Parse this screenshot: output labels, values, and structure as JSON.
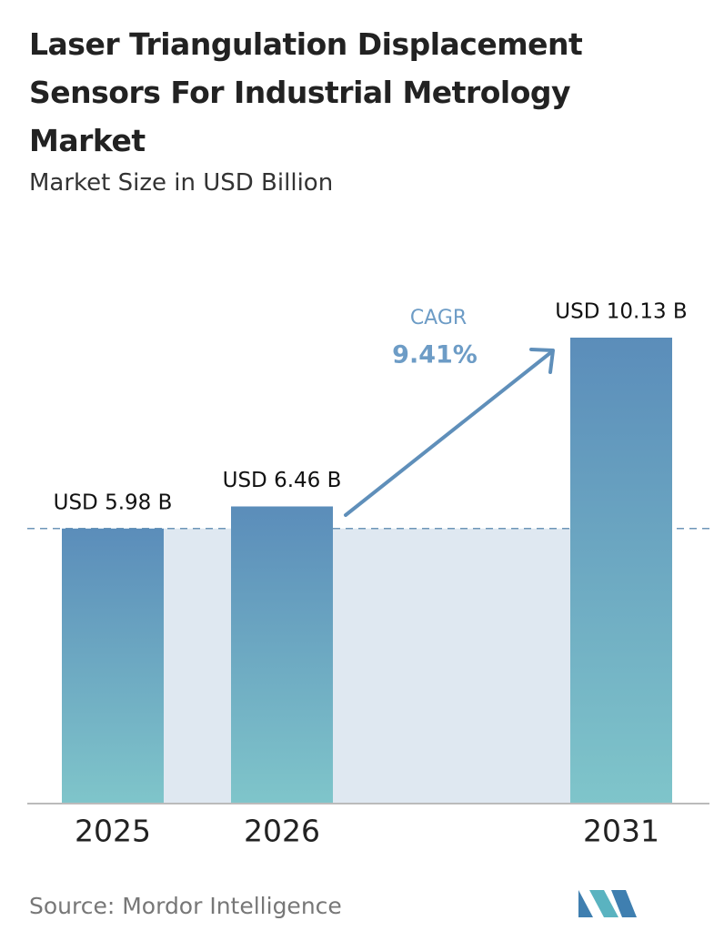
{
  "chart_data": {
    "type": "bar",
    "title": "Laser Triangulation Displacement Sensors For Industrial Metrology Market",
    "subtitle": "Market Size in USD Billion",
    "categories": [
      "2025",
      "2026",
      "2031"
    ],
    "values": [
      5.98,
      6.46,
      10.13
    ],
    "value_labels": [
      "USD 5.98 B",
      "USD 6.46 B",
      "USD 10.13 B"
    ],
    "annotations": {
      "cagr_label": "CAGR",
      "cagr_value": "9.41%"
    },
    "source": "Source: Mordor Intelligence"
  }
}
